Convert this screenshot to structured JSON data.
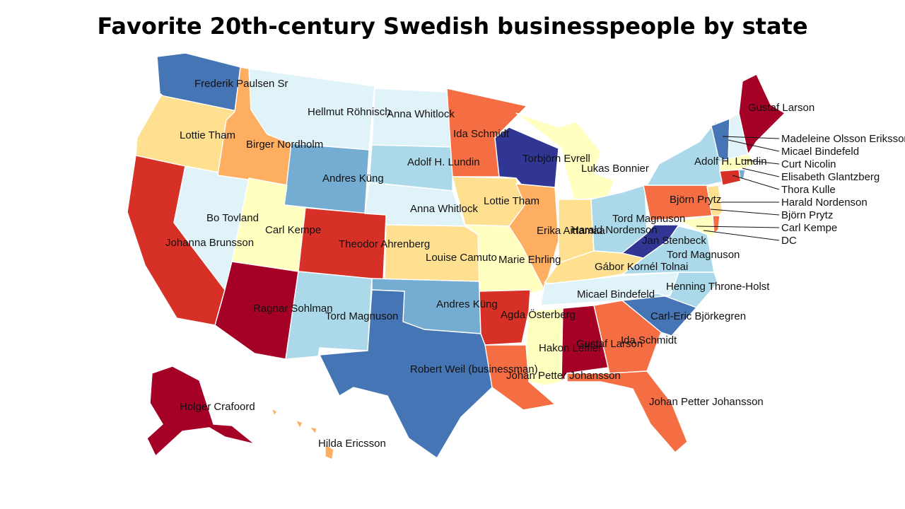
{
  "title": "Favorite 20th-century Swedish businesspeople by state",
  "colors": {
    "dark_red": "#a50026",
    "red": "#d73027",
    "orange_red": "#f46d43",
    "orange": "#fdae61",
    "light_orange": "#fee090",
    "cream": "#ffffbf",
    "pale_cyan": "#e0f3f8",
    "light_blue": "#abd9e9",
    "mid_blue": "#74add1",
    "blue": "#4575b4",
    "dark_blue": "#313695"
  },
  "states": {
    "WA": "Frederik Paulsen Sr",
    "OR": "Lottie Tham",
    "CA": "Johanna Brunsson",
    "ID": "Birger Nordholm",
    "NV": "Bo Tovland",
    "MT": "Hellmut Röhnisch",
    "WY": "Andres Küng",
    "UT": "Carl Kempe",
    "CO": "Theodor Ahrenberg",
    "AZ": "Ragnar Sohlman",
    "NM": "Tord Magnuson",
    "ND": "Anna Whitlock",
    "SD": "Adolf H. Lundin",
    "NE": "Anna Whitlock",
    "KS": "Louise Camuto",
    "OK": "Andres Küng",
    "TX": "Robert Weil (businessman)",
    "MN": "Ida Schmidt",
    "IA": "Lottie Tham",
    "MO": "Marie Ehrling",
    "AR": "Agda Österberg",
    "LA": "Johan Petter Johansson",
    "WI": "Torbjörn Evrell",
    "MI": "Lukas Bonnier",
    "IL": "Erika Aittamaa",
    "IN": "Harald Nordenson",
    "OH": "Tord Magnuson",
    "KY": "Gábor Kornél Tolnai",
    "TN": "Micael Bindefeld",
    "MS": "Hakon Leffler",
    "AL": "Gustaf Larson",
    "GA": "Ida Schmidt",
    "FL": "Johan Petter Johansson",
    "SC": "Carl-Eric Björkegren",
    "NC": "Henning Throne-Holst",
    "VA": "Tord Magnuson",
    "WV": "Jan Stenbeck",
    "PA": "Björn Prytz",
    "NY": "Adolf H. Lundin",
    "ME": "Gustaf Larson",
    "AK": "Holger Crafoord",
    "HI": "Hilda Ericsson"
  },
  "callouts": [
    "Madeleine Olsson Eriksson",
    "Micael Bindefeld",
    "Curt Nicolin",
    "Elisabeth Glantzberg",
    "Thora Kulle",
    "Harald Nordenson",
    "Björn Prytz",
    "Carl Kempe",
    "DC"
  ]
}
